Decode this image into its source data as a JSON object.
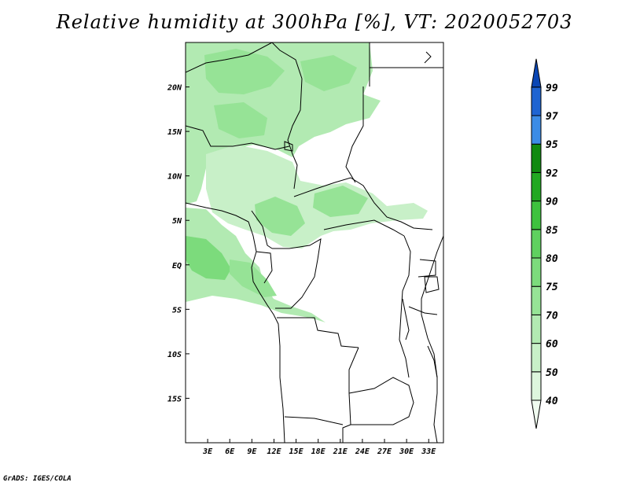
{
  "title": "Relative humidity at 300hPa [%], VT: 2020052703",
  "credit": "GrADS: IGES/COLA",
  "map": {
    "lon_labels": [
      "3E",
      "6E",
      "9E",
      "12E",
      "15E",
      "18E",
      "21E",
      "24E",
      "27E",
      "30E",
      "33E"
    ],
    "lat_labels": [
      "20N",
      "15N",
      "10N",
      "5N",
      "EQ",
      "5S",
      "10S",
      "15S"
    ],
    "extent": {
      "lon": [
        0,
        35
      ],
      "lat": [
        -20,
        25
      ]
    }
  },
  "colorbar": {
    "levels": [
      "40",
      "50",
      "60",
      "70",
      "75",
      "80",
      "85",
      "90",
      "92",
      "95",
      "97",
      "99"
    ],
    "colors": [
      "#f0fcf0",
      "#ddf6dd",
      "#c8f0c8",
      "#b2eab2",
      "#96e396",
      "#7cdb7c",
      "#5fd05f",
      "#3ec23e",
      "#21a821",
      "#108a10",
      "#3c8ce6",
      "#1e64d2",
      "#0a46b4"
    ]
  }
}
